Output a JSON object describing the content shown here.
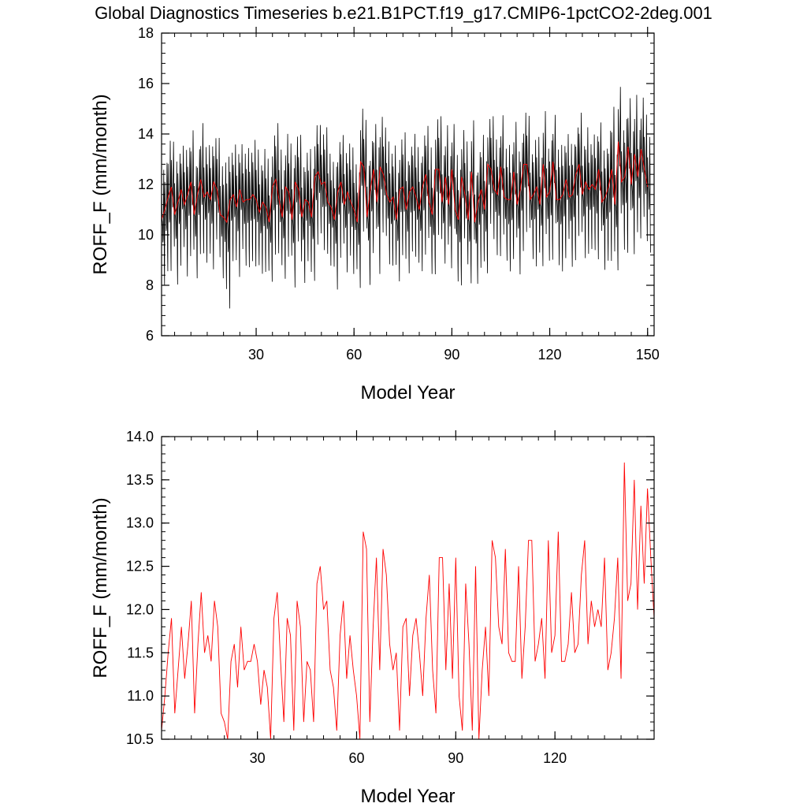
{
  "figure": {
    "title": "Global Diagnostics Timeseries b.e21.B1PCT.f19_g17.CMIP6-1pctCO2-2deg.001"
  },
  "chart_data": [
    {
      "type": "line",
      "xlabel": "Model Year",
      "ylabel": "ROFF_F (mm/month)",
      "xlim": [
        1,
        152
      ],
      "ylim": [
        6,
        18
      ],
      "xticks": [
        30,
        60,
        90,
        120,
        150
      ],
      "yticks": [
        6,
        8,
        10,
        12,
        14,
        16,
        18
      ],
      "ytick_decimals": 0,
      "series": [
        {
          "role": "monthly",
          "color": "#000000",
          "step": 0.08333,
          "annual_mean_series": 1,
          "seasonal_amplitude": [
            3.2,
            3.0,
            3.6,
            2.9,
            3.4,
            3.1,
            2.8,
            3.5,
            3.0,
            3.3,
            3.1,
            2.9,
            3.6,
            3.2,
            3.0,
            3.4,
            2.8,
            3.3,
            3.1,
            3.5,
            4.2,
            3.0,
            3.2,
            3.4,
            2.9,
            3.1,
            3.3,
            3.0,
            3.5,
            3.2,
            3.0,
            3.4,
            3.1,
            2.9,
            3.3,
            3.6,
            3.2,
            3.0,
            3.4,
            3.1,
            3.3,
            2.9,
            3.5,
            3.2,
            3.0,
            3.4,
            3.1,
            3.3,
            3.0,
            3.2,
            3.5,
            3.1,
            2.9,
            3.4,
            3.2,
            3.0,
            3.3,
            3.1,
            3.5,
            2.9,
            3.2,
            3.4,
            3.0,
            3.3,
            3.1,
            2.9,
            3.5,
            3.2,
            3.0,
            3.4,
            3.1,
            3.3,
            3.0,
            3.2,
            3.5,
            3.1,
            2.9,
            3.4,
            3.2,
            3.0,
            3.3,
            3.1,
            3.5,
            2.9,
            3.2,
            3.4,
            3.0,
            3.3,
            3.1,
            2.9,
            3.5,
            3.2,
            3.0,
            3.4,
            3.1,
            3.3,
            3.0,
            3.2,
            3.5,
            3.1,
            2.9,
            3.4,
            3.2,
            3.0,
            3.3,
            3.1,
            3.5,
            2.9,
            3.2,
            3.4,
            3.0,
            3.3,
            3.1,
            2.9,
            3.5,
            3.2,
            3.0,
            3.4,
            3.1,
            3.3,
            3.0,
            3.2,
            3.5,
            3.1,
            2.9,
            3.4,
            3.2,
            3.0,
            3.3,
            3.1,
            3.5,
            2.9,
            3.2,
            3.4,
            3.0,
            3.3,
            3.1,
            3.6,
            4.0,
            3.2,
            3.5,
            3.3,
            3.7,
            3.1,
            3.4,
            3.8,
            3.0,
            3.3,
            3.5,
            3.2,
            3.0,
            3.6
          ]
        },
        {
          "role": "annual",
          "color": "#ff0000",
          "x_start": 1,
          "values": [
            10.6,
            11.0,
            11.5,
            11.9,
            10.8,
            11.3,
            11.8,
            11.2,
            11.6,
            12.1,
            10.8,
            11.6,
            12.2,
            11.5,
            11.7,
            11.4,
            12.1,
            11.8,
            10.8,
            10.7,
            10.5,
            11.4,
            11.6,
            11.1,
            11.8,
            11.3,
            11.4,
            11.4,
            11.6,
            11.4,
            10.9,
            11.3,
            11.1,
            10.5,
            11.9,
            12.2,
            11.4,
            10.7,
            11.9,
            11.7,
            10.6,
            12.1,
            11.8,
            10.7,
            11.4,
            11.3,
            10.7,
            12.3,
            12.5,
            12.0,
            12.1,
            11.3,
            11.1,
            10.6,
            11.7,
            12.1,
            11.2,
            11.7,
            11.3,
            11.0,
            10.5,
            12.9,
            12.7,
            10.7,
            11.8,
            12.6,
            11.3,
            12.7,
            12.4,
            11.6,
            11.3,
            11.5,
            10.6,
            11.8,
            11.9,
            11.0,
            11.7,
            11.9,
            11.5,
            11.0,
            11.9,
            12.4,
            11.3,
            10.8,
            12.6,
            12.6,
            11.3,
            12.3,
            11.2,
            12.6,
            11.0,
            10.6,
            12.3,
            11.6,
            10.6,
            12.5,
            10.5,
            11.3,
            11.8,
            11.0,
            12.8,
            12.6,
            11.8,
            11.6,
            12.7,
            11.5,
            11.4,
            11.4,
            12.5,
            11.2,
            11.8,
            12.8,
            12.8,
            11.4,
            11.6,
            11.9,
            11.2,
            12.8,
            11.5,
            11.7,
            12.9,
            11.4,
            11.4,
            11.6,
            12.2,
            11.5,
            11.6,
            12.4,
            12.8,
            11.6,
            12.1,
            11.8,
            12.0,
            11.8,
            12.6,
            11.3,
            11.5,
            11.9,
            12.6,
            11.2,
            13.7,
            12.1,
            12.3,
            13.5,
            12.0,
            13.2,
            12.3,
            13.4,
            12.6,
            11.9
          ]
        }
      ]
    },
    {
      "type": "line",
      "xlabel": "Model Year",
      "ylabel": "ROFF_F (mm/month)",
      "xlim": [
        1,
        150
      ],
      "ylim": [
        10.5,
        14.0
      ],
      "xticks": [
        30,
        60,
        90,
        120
      ],
      "yticks": [
        10.5,
        11.0,
        11.5,
        12.0,
        12.5,
        13.0,
        13.5,
        14.0
      ],
      "ytick_decimals": 1,
      "series": [
        {
          "role": "annual",
          "color": "#ff0000",
          "x_start": 1,
          "values_from_series": 1
        }
      ]
    }
  ]
}
